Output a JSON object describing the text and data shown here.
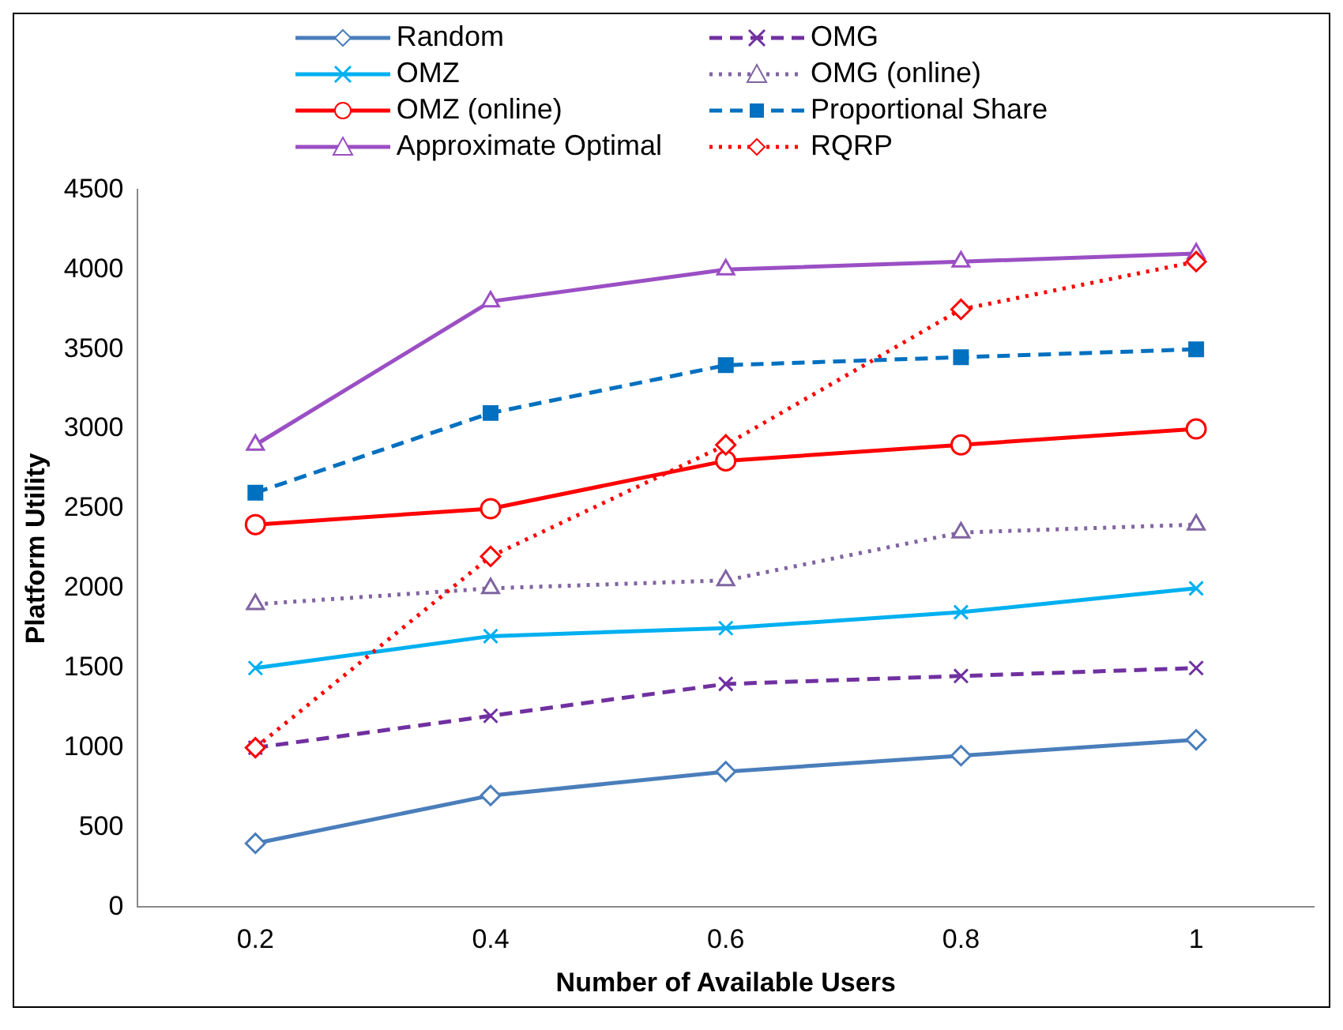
{
  "chart_data": {
    "type": "line",
    "xlabel": "Number of Available Users",
    "ylabel": "Platform Utility",
    "categories": [
      "0.2",
      "0.4",
      "0.6",
      "0.8",
      "1"
    ],
    "ylim": [
      0,
      4500
    ],
    "yticks": [
      0,
      500,
      1000,
      1500,
      2000,
      2500,
      3000,
      3500,
      4000,
      4500
    ],
    "grid": false,
    "legend": "top",
    "series": [
      {
        "name": "Random",
        "color": "#4a7ebb",
        "marker": "diamond",
        "line_style": "solid",
        "values": [
          400,
          700,
          850,
          950,
          1050
        ]
      },
      {
        "name": "OMG",
        "color": "#7030a0",
        "marker": "cross",
        "line_style": "dashed",
        "values": [
          1000,
          1200,
          1400,
          1450,
          1500
        ]
      },
      {
        "name": "OMZ",
        "color": "#00b0f0",
        "marker": "cross",
        "line_style": "solid",
        "values": [
          1500,
          1700,
          1750,
          1850,
          2000
        ]
      },
      {
        "name": "OMG (online)",
        "color": "#8064a2",
        "marker": "triangle",
        "line_style": "dotted",
        "values": [
          1900,
          2000,
          2050,
          2350,
          2400
        ]
      },
      {
        "name": "OMZ (online)",
        "color": "#ff0000",
        "marker": "circle",
        "line_style": "solid",
        "values": [
          2400,
          2500,
          2800,
          2900,
          3000
        ]
      },
      {
        "name": "Proportional Share",
        "color": "#0070c0",
        "marker": "square",
        "line_style": "dashed",
        "values": [
          2600,
          3100,
          3400,
          3450,
          3500
        ]
      },
      {
        "name": "Approximate Optimal",
        "color": "#9b4fc4",
        "marker": "triangle",
        "line_style": "solid",
        "values": [
          2900,
          3800,
          4000,
          4050,
          4100
        ]
      },
      {
        "name": "RQRP",
        "color": "#ff0000",
        "marker": "diamond",
        "line_style": "dotted",
        "values": [
          1000,
          2200,
          2900,
          3750,
          4050
        ]
      }
    ]
  }
}
